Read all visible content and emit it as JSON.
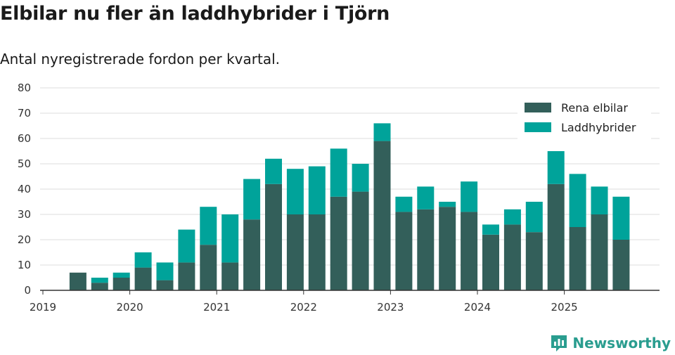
{
  "colors": {
    "elbil": "#335f5a",
    "hybrid": "#00a39a",
    "grid": "#dddddd",
    "axis": "#333333",
    "brand": "#2a9d8f"
  },
  "brand": {
    "name": "Newsworthy",
    "icon": "bar-chart-icon"
  },
  "chart_data": {
    "type": "bar",
    "stacked": true,
    "title": "Elbilar nu fler än laddhybrider i Tjörn",
    "subtitle": "Antal nyregistrerade fordon per kvartal.",
    "ylim": [
      0,
      80
    ],
    "yticks": [
      0,
      10,
      20,
      30,
      40,
      50,
      60,
      70,
      80
    ],
    "xtick_labels": [
      "2019",
      "2020",
      "2021",
      "2022",
      "2023",
      "2024",
      "2025"
    ],
    "xtick_quarter_index": [
      0,
      4,
      8,
      12,
      16,
      20,
      24
    ],
    "categories": [
      "2019 Q1",
      "2019 Q2",
      "2019 Q3",
      "2019 Q4",
      "2020 Q1",
      "2020 Q2",
      "2020 Q3",
      "2020 Q4",
      "2021 Q1",
      "2021 Q2",
      "2021 Q3",
      "2021 Q4",
      "2022 Q1",
      "2022 Q2",
      "2022 Q3",
      "2022 Q4",
      "2023 Q1",
      "2023 Q2",
      "2023 Q3",
      "2023 Q4",
      "2024 Q1",
      "2024 Q2",
      "2024 Q3",
      "2024 Q4",
      "2025 Q1",
      "2025 Q2",
      "2025 Q3"
    ],
    "series": [
      {
        "name": "Rena elbilar",
        "key": "elbil",
        "values": [
          null,
          7,
          3,
          5,
          9,
          4,
          11,
          18,
          11,
          28,
          42,
          30,
          30,
          37,
          39,
          59,
          31,
          32,
          33,
          31,
          22,
          26,
          23,
          42,
          25,
          30,
          20
        ]
      },
      {
        "name": "Laddhybrider",
        "key": "hybrid",
        "values": [
          null,
          0,
          2,
          2,
          6,
          7,
          13,
          15,
          19,
          16,
          10,
          18,
          19,
          19,
          11,
          7,
          6,
          9,
          2,
          12,
          4,
          6,
          12,
          13,
          21,
          11,
          17
        ]
      }
    ],
    "legend_position": "top-right"
  }
}
